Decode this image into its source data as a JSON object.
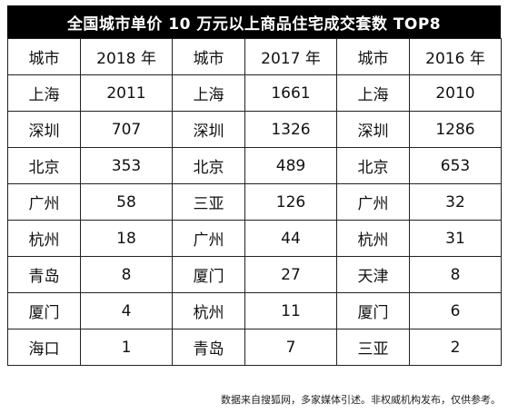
{
  "title": "全国城市单价 10 万元以上商品住宅成交套数 TOP8",
  "table": {
    "headers": [
      "城市",
      "2018 年",
      "城市",
      "2017 年",
      "城市",
      "2016 年"
    ],
    "rows": [
      [
        "上海",
        "2011",
        "上海",
        "1661",
        "上海",
        "2010"
      ],
      [
        "深圳",
        "707",
        "深圳",
        "1326",
        "深圳",
        "1286"
      ],
      [
        "北京",
        "353",
        "北京",
        "489",
        "北京",
        "653"
      ],
      [
        "广州",
        "58",
        "三亚",
        "126",
        "广州",
        "32"
      ],
      [
        "杭州",
        "18",
        "广州",
        "44",
        "杭州",
        "31"
      ],
      [
        "青岛",
        "8",
        "厦门",
        "27",
        "天津",
        "8"
      ],
      [
        "厦门",
        "4",
        "杭州",
        "11",
        "厦门",
        "6"
      ],
      [
        "海口",
        "1",
        "青岛",
        "7",
        "三亚",
        "2"
      ]
    ]
  },
  "footer": "数据来自搜狐网，多家媒体引述。非权威机构发布，仅供参考。"
}
